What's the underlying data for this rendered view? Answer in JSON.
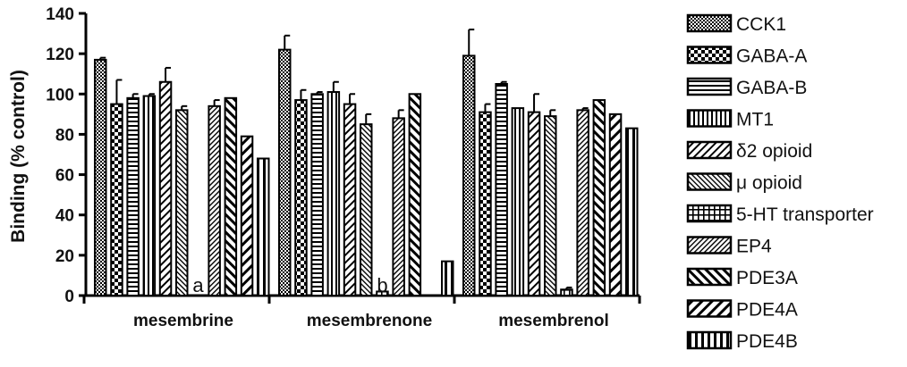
{
  "chart_data": {
    "type": "bar",
    "ylabel": "Binding (% control)",
    "xlabel": "",
    "ylim": [
      0,
      140
    ],
    "yticks": [
      "0",
      "20",
      "40",
      "60",
      "80",
      "100",
      "120",
      "140"
    ],
    "categories": [
      "mesembrine",
      "mesembrenone",
      "mesembrenol"
    ],
    "legend_position": "right",
    "series": [
      {
        "name": "CCK1",
        "pattern": "checker-fine",
        "values": [
          117,
          122,
          119
        ],
        "errors": [
          1,
          7,
          13
        ]
      },
      {
        "name": "GABA-A",
        "pattern": "checker-coarse",
        "values": [
          95,
          97,
          91
        ],
        "errors": [
          12,
          5,
          4
        ]
      },
      {
        "name": "GABA-B",
        "pattern": "horizontal",
        "values": [
          98,
          100,
          105
        ],
        "errors": [
          2,
          1,
          1
        ]
      },
      {
        "name": "MT1",
        "pattern": "vertical",
        "values": [
          99,
          101,
          93
        ],
        "errors": [
          1,
          5,
          0
        ]
      },
      {
        "name": "δ2 opioid",
        "pattern": "diag-up",
        "values": [
          106,
          95,
          91
        ],
        "errors": [
          7,
          5,
          9
        ]
      },
      {
        "name": "μ opioid",
        "pattern": "diag-down-dense",
        "values": [
          92,
          85,
          89
        ],
        "errors": [
          2,
          5,
          3
        ]
      },
      {
        "name": "5-HT transporter",
        "pattern": "grid",
        "values": [
          0,
          2,
          3
        ],
        "errors": [
          0,
          0,
          1
        ]
      },
      {
        "name": "EP4",
        "pattern": "diag-up-dense",
        "values": [
          94,
          88,
          92
        ],
        "errors": [
          3,
          4,
          1
        ]
      },
      {
        "name": "PDE3A",
        "pattern": "diag-down",
        "values": [
          98,
          100,
          97
        ],
        "errors": [
          0,
          0,
          0
        ]
      },
      {
        "name": "PDE4A",
        "pattern": "diag-up-wide",
        "values": [
          79,
          0,
          90
        ],
        "errors": [
          0,
          0,
          0
        ]
      },
      {
        "name": "PDE4B",
        "pattern": "vertical-wide",
        "values": [
          68,
          17,
          83
        ],
        "errors": [
          0,
          0,
          0
        ]
      }
    ],
    "annotations": [
      {
        "text": "a",
        "category": "mesembrine"
      },
      {
        "text": "b",
        "category": "mesembrenone"
      }
    ]
  }
}
